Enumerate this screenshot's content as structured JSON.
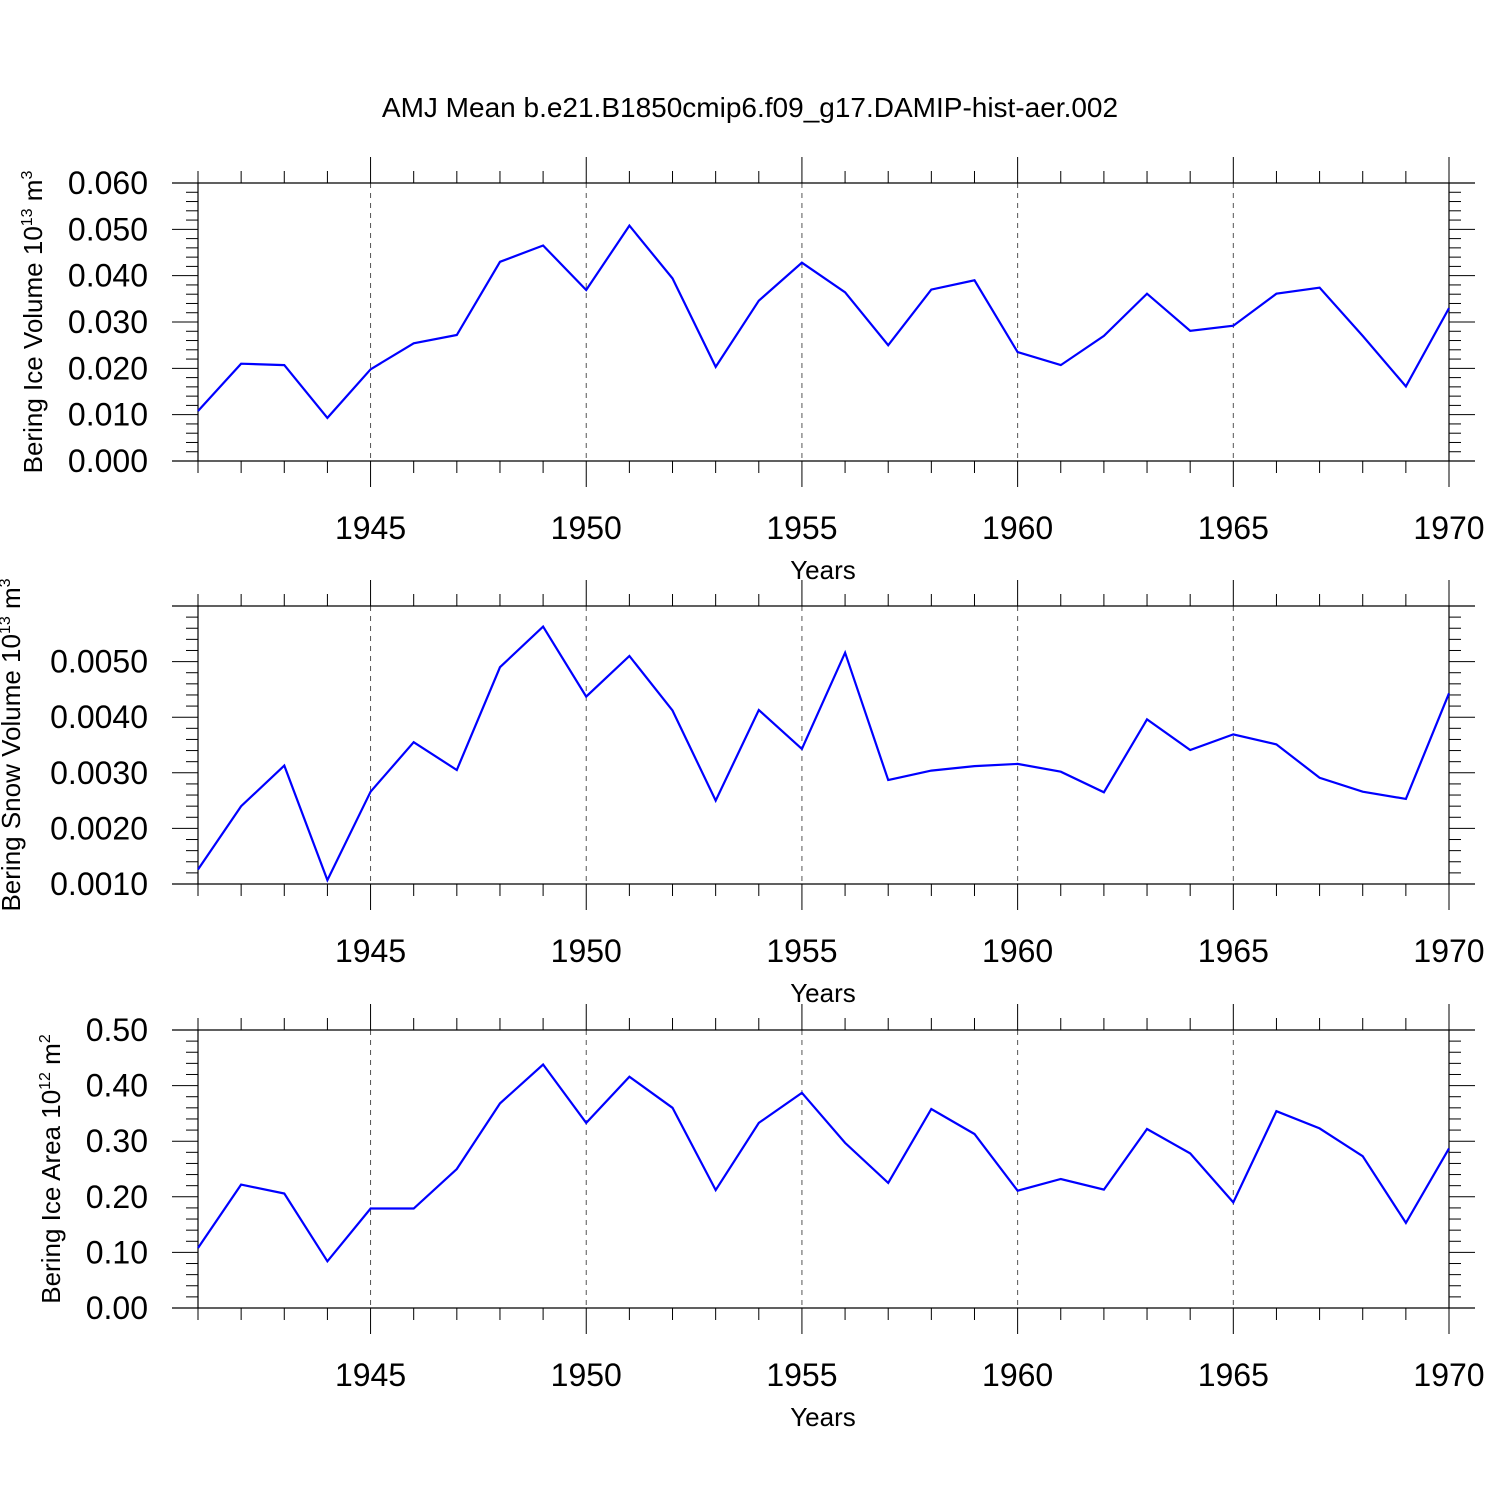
{
  "title": "AMJ Mean b.e21.B1850cmip6.f09_g17.DAMIP-hist-aer.002",
  "colors": {
    "line": "#0000ff",
    "axes": "#000000",
    "grid": "#555555"
  },
  "chart_data": [
    {
      "type": "line",
      "name": "Bering Ice Volume",
      "ylabel": "Bering Ice Volume",
      "ylabel_unit_base": "10",
      "ylabel_unit_exp": "13",
      "ylabel_unit_tail": "m",
      "ylabel_unit_tail_exp": "3",
      "xlabel": "Years",
      "xlim": [
        1941,
        1970
      ],
      "ylim": [
        0.0,
        0.06
      ],
      "yticks": [
        0.0,
        0.01,
        0.02,
        0.03,
        0.04,
        0.05,
        0.06
      ],
      "ytick_labels": [
        "0.000",
        "0.010",
        "0.020",
        "0.030",
        "0.040",
        "0.050",
        "0.060"
      ],
      "xticks": [
        1945,
        1950,
        1955,
        1960,
        1965,
        1970
      ],
      "xtick_labels": [
        "1945",
        "1950",
        "1955",
        "1960",
        "1965",
        "1970"
      ],
      "grid": "vertical dashed at labeled years",
      "x": [
        1941,
        1942,
        1943,
        1944,
        1945,
        1946,
        1947,
        1948,
        1949,
        1950,
        1951,
        1952,
        1953,
        1954,
        1955,
        1956,
        1957,
        1958,
        1959,
        1960,
        1961,
        1962,
        1963,
        1964,
        1965,
        1966,
        1967,
        1968,
        1969,
        1970
      ],
      "y": [
        0.0108,
        0.021,
        0.0207,
        0.0093,
        0.0198,
        0.0254,
        0.0272,
        0.043,
        0.0465,
        0.0369,
        0.0508,
        0.0394,
        0.0203,
        0.0346,
        0.0428,
        0.0364,
        0.025,
        0.037,
        0.039,
        0.0235,
        0.0207,
        0.027,
        0.0361,
        0.0281,
        0.0292,
        0.0361,
        0.0374,
        0.027,
        0.0161,
        0.033
      ]
    },
    {
      "type": "line",
      "name": "Bering Snow Volume",
      "ylabel": "Bering Snow Volume",
      "ylabel_unit_base": "10",
      "ylabel_unit_exp": "13",
      "ylabel_unit_tail": "m",
      "ylabel_unit_tail_exp": "3",
      "xlabel": "Years",
      "xlim": [
        1941,
        1970
      ],
      "ylim": [
        0.001,
        0.006
      ],
      "yticks": [
        0.001,
        0.002,
        0.003,
        0.004,
        0.005
      ],
      "ytick_labels": [
        "0.0010",
        "0.0020",
        "0.0030",
        "0.0040",
        "0.0050"
      ],
      "xticks": [
        1945,
        1950,
        1955,
        1960,
        1965,
        1970
      ],
      "xtick_labels": [
        "1945",
        "1950",
        "1955",
        "1960",
        "1965",
        "1970"
      ],
      "grid": "vertical dashed at labeled years",
      "x": [
        1941,
        1942,
        1943,
        1944,
        1945,
        1946,
        1947,
        1948,
        1949,
        1950,
        1951,
        1952,
        1953,
        1954,
        1955,
        1956,
        1957,
        1958,
        1959,
        1960,
        1961,
        1962,
        1963,
        1964,
        1965,
        1966,
        1967,
        1968,
        1969,
        1970
      ],
      "y": [
        0.00126,
        0.0024,
        0.00313,
        0.00107,
        0.00266,
        0.00355,
        0.00305,
        0.0049,
        0.00563,
        0.00437,
        0.0051,
        0.00412,
        0.0025,
        0.00413,
        0.00343,
        0.00516,
        0.00287,
        0.00304,
        0.00312,
        0.00316,
        0.00302,
        0.00265,
        0.00396,
        0.00341,
        0.00369,
        0.00351,
        0.00291,
        0.00266,
        0.00253,
        0.00443
      ]
    },
    {
      "type": "line",
      "name": "Bering Ice Area",
      "ylabel": "Bering Ice Area",
      "ylabel_unit_base": "10",
      "ylabel_unit_exp": "12",
      "ylabel_unit_tail": "m",
      "ylabel_unit_tail_exp": "2",
      "xlabel": "Years",
      "xlim": [
        1941,
        1970
      ],
      "ylim": [
        0.0,
        0.5
      ],
      "yticks": [
        0.0,
        0.1,
        0.2,
        0.3,
        0.4,
        0.5
      ],
      "ytick_labels": [
        "0.00",
        "0.10",
        "0.20",
        "0.30",
        "0.40",
        "0.50"
      ],
      "xticks": [
        1945,
        1950,
        1955,
        1960,
        1965,
        1970
      ],
      "xtick_labels": [
        "1945",
        "1950",
        "1955",
        "1960",
        "1965",
        "1970"
      ],
      "grid": "vertical dashed at labeled years",
      "x": [
        1941,
        1942,
        1943,
        1944,
        1945,
        1946,
        1947,
        1948,
        1949,
        1950,
        1951,
        1952,
        1953,
        1954,
        1955,
        1956,
        1957,
        1958,
        1959,
        1960,
        1961,
        1962,
        1963,
        1964,
        1965,
        1966,
        1967,
        1968,
        1969,
        1970
      ],
      "y": [
        0.108,
        0.222,
        0.206,
        0.084,
        0.179,
        0.179,
        0.25,
        0.368,
        0.438,
        0.333,
        0.416,
        0.36,
        0.212,
        0.333,
        0.387,
        0.297,
        0.225,
        0.358,
        0.313,
        0.211,
        0.232,
        0.213,
        0.322,
        0.278,
        0.19,
        0.354,
        0.323,
        0.273,
        0.153,
        0.287
      ]
    }
  ]
}
